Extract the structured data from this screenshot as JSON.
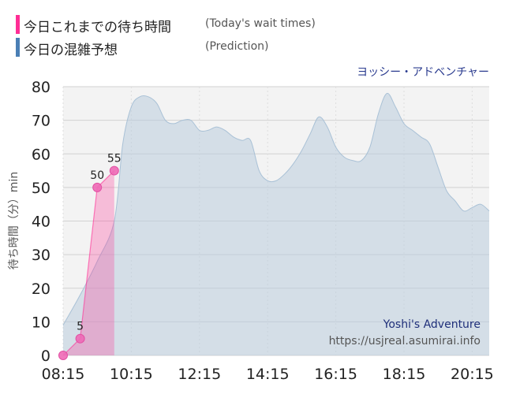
{
  "legend": {
    "today": {
      "label": "今日これまでの待ち時間",
      "en": "(Today's wait times)",
      "color": "#ff2d95"
    },
    "forecast": {
      "label": "今日の混雑予想",
      "en": "(Prediction)",
      "color": "#4a7fb5"
    }
  },
  "attraction": "ヨッシー・アドベンチャー",
  "watermark": {
    "line1": "Yoshi's Adventure",
    "line2": "https://usjreal.asumirai.info"
  },
  "chart_data": {
    "type": "area",
    "ylabel": "待ち時間（分）min",
    "ylim": [
      0,
      80
    ],
    "yticks": [
      "0",
      "10",
      "20",
      "30",
      "40",
      "50",
      "60",
      "70",
      "80"
    ],
    "xticks": [
      "08:15",
      "10:15",
      "12:15",
      "14:15",
      "16:15",
      "18:15",
      "20:15"
    ],
    "xlim": [
      "08:15",
      "20:45"
    ],
    "grid": true,
    "series": [
      {
        "key": "forecast",
        "color": "#b9ccdc",
        "x": [
          "08:15",
          "08:45",
          "09:15",
          "09:45",
          "10:00",
          "10:15",
          "10:30",
          "10:45",
          "11:00",
          "11:15",
          "11:30",
          "11:45",
          "12:00",
          "12:15",
          "12:30",
          "12:45",
          "13:00",
          "13:15",
          "13:30",
          "13:45",
          "14:00",
          "14:15",
          "14:30",
          "14:45",
          "15:00",
          "15:15",
          "15:30",
          "15:45",
          "16:00",
          "16:15",
          "16:30",
          "16:45",
          "17:00",
          "17:15",
          "17:30",
          "17:45",
          "18:00",
          "18:15",
          "18:30",
          "18:45",
          "19:00",
          "19:15",
          "19:30",
          "19:45",
          "20:00",
          "20:15",
          "20:30",
          "20:45"
        ],
        "y": [
          9,
          18,
          28,
          40,
          63,
          74,
          77,
          77,
          75,
          70,
          69,
          70,
          70,
          67,
          67,
          68,
          67,
          65,
          64,
          64,
          55,
          52,
          52,
          54,
          57,
          61,
          66,
          71,
          68,
          62,
          59,
          58,
          58,
          62,
          72,
          78,
          74,
          69,
          67,
          65,
          63,
          56,
          49,
          46,
          43,
          44,
          45,
          43
        ]
      },
      {
        "key": "today",
        "color": "#ff2d95",
        "x": [
          "08:15",
          "08:45",
          "09:15",
          "09:45"
        ],
        "y": [
          0,
          5,
          50,
          55
        ],
        "labels": [
          "",
          "5",
          "50",
          "55"
        ]
      }
    ]
  }
}
